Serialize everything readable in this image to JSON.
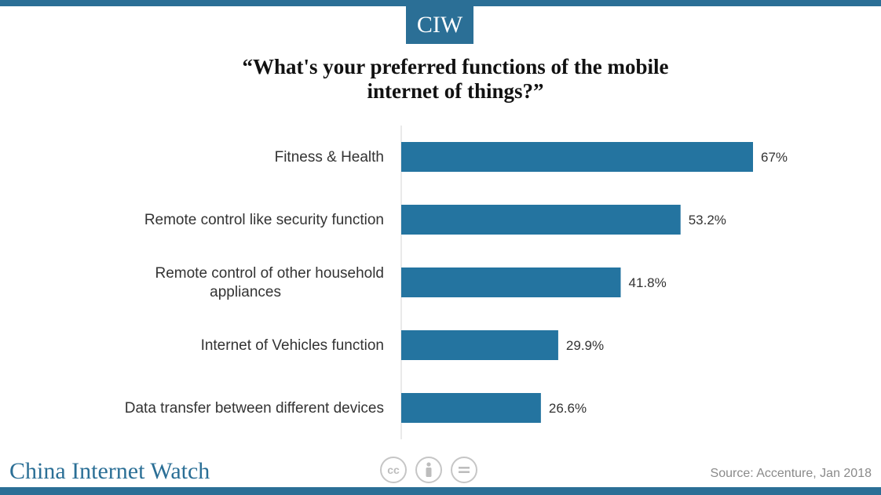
{
  "logo": "CIW",
  "title_line1": "“What's your preferred functions of the mobile",
  "title_line2": "internet of things?”",
  "brand": "China Internet Watch",
  "source": "Source: Accenture, Jan 2018",
  "colors": {
    "accent": "#2b6f96",
    "bar": "#2474a0"
  },
  "license_icons": [
    "cc-icon",
    "attribution-icon",
    "no-derivatives-icon"
  ],
  "chart_data": {
    "type": "bar",
    "orientation": "horizontal",
    "title": "“What's your preferred functions of the mobile internet of things?”",
    "categories": [
      [
        "Fitness & Health"
      ],
      [
        "Remote control like security function"
      ],
      [
        "Remote control of other household",
        "appliances"
      ],
      [
        "Internet of Vehicles function"
      ],
      [
        "Data transfer between different devices"
      ]
    ],
    "values": [
      67,
      53.2,
      41.8,
      29.9,
      26.6
    ],
    "labels": [
      "67%",
      "53.2%",
      "41.8%",
      "29.9%",
      "26.6%"
    ],
    "xlim": [
      0,
      67
    ],
    "grid": false,
    "legend": "none"
  }
}
